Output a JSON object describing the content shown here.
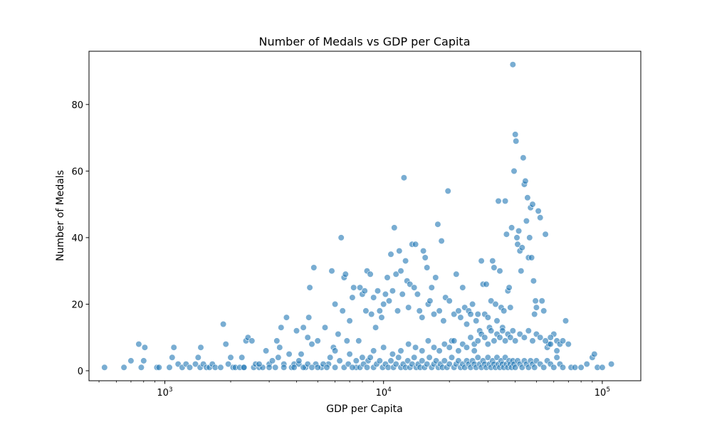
{
  "chart_data": {
    "type": "scatter",
    "title": "Number of Medals vs GDP per Capita",
    "xlabel": "GDP per Capita",
    "ylabel": "Number of Medals",
    "x_scale": "log",
    "xlim": [
      450,
      150000
    ],
    "ylim": [
      -3,
      96
    ],
    "x_ticks": [
      {
        "base": "10",
        "exp": "3"
      },
      {
        "base": "10",
        "exp": "4"
      },
      {
        "base": "10",
        "exp": "5"
      }
    ],
    "y_ticks": [
      "0",
      "20",
      "40",
      "60",
      "80"
    ],
    "grid": false,
    "legend": "none",
    "marker_color": "#1f77b4",
    "marker_alpha": 0.6,
    "points": [
      [
        530,
        1
      ],
      [
        650,
        1
      ],
      [
        700,
        3
      ],
      [
        760,
        8
      ],
      [
        780,
        1
      ],
      [
        800,
        3
      ],
      [
        810,
        7
      ],
      [
        920,
        1
      ],
      [
        940,
        1
      ],
      [
        1050,
        1
      ],
      [
        1080,
        4
      ],
      [
        1100,
        7
      ],
      [
        1150,
        2
      ],
      [
        1200,
        1
      ],
      [
        1250,
        2
      ],
      [
        1300,
        1
      ],
      [
        1380,
        2
      ],
      [
        1420,
        4
      ],
      [
        1450,
        1
      ],
      [
        1460,
        7
      ],
      [
        1500,
        2
      ],
      [
        1550,
        1
      ],
      [
        1600,
        1
      ],
      [
        1650,
        2
      ],
      [
        1700,
        1
      ],
      [
        1800,
        1
      ],
      [
        1850,
        14
      ],
      [
        1900,
        8
      ],
      [
        1950,
        2
      ],
      [
        2000,
        4
      ],
      [
        2050,
        1
      ],
      [
        2100,
        1
      ],
      [
        2200,
        1
      ],
      [
        2250,
        4
      ],
      [
        2300,
        1
      ],
      [
        2350,
        9
      ],
      [
        2400,
        10
      ],
      [
        2500,
        9
      ],
      [
        2550,
        1
      ],
      [
        2600,
        2
      ],
      [
        2700,
        1
      ],
      [
        2800,
        1
      ],
      [
        2900,
        6
      ],
      [
        3000,
        2
      ],
      [
        3100,
        3
      ],
      [
        3200,
        1
      ],
      [
        3250,
        9
      ],
      [
        3300,
        4
      ],
      [
        3350,
        7
      ],
      [
        3400,
        13
      ],
      [
        3500,
        2
      ],
      [
        3600,
        16
      ],
      [
        3700,
        5
      ],
      [
        3800,
        1
      ],
      [
        3900,
        2
      ],
      [
        4000,
        12
      ],
      [
        4100,
        2
      ],
      [
        4200,
        5
      ],
      [
        4300,
        13
      ],
      [
        4400,
        1
      ],
      [
        4500,
        10
      ],
      [
        4550,
        16
      ],
      [
        4600,
        25
      ],
      [
        4700,
        8
      ],
      [
        4800,
        31
      ],
      [
        4900,
        2
      ],
      [
        5000,
        9
      ],
      [
        5200,
        1
      ],
      [
        5400,
        13
      ],
      [
        5600,
        2
      ],
      [
        5800,
        30
      ],
      [
        5900,
        7
      ],
      [
        6000,
        20
      ],
      [
        6200,
        11
      ],
      [
        6400,
        40
      ],
      [
        6500,
        18
      ],
      [
        6600,
        28
      ],
      [
        6700,
        29
      ],
      [
        6800,
        9
      ],
      [
        7000,
        15
      ],
      [
        7200,
        22
      ],
      [
        7300,
        25
      ],
      [
        7500,
        1
      ],
      [
        7700,
        9
      ],
      [
        7800,
        25
      ],
      [
        8000,
        23
      ],
      [
        8200,
        24
      ],
      [
        8300,
        18
      ],
      [
        8400,
        30
      ],
      [
        8500,
        3
      ],
      [
        8700,
        29
      ],
      [
        8800,
        17
      ],
      [
        9000,
        22
      ],
      [
        9200,
        13
      ],
      [
        9400,
        24
      ],
      [
        9600,
        18
      ],
      [
        9800,
        16
      ],
      [
        10000,
        20
      ],
      [
        10200,
        23
      ],
      [
        10400,
        28
      ],
      [
        10600,
        21
      ],
      [
        10800,
        35
      ],
      [
        11000,
        24
      ],
      [
        11200,
        43
      ],
      [
        11400,
        29
      ],
      [
        11600,
        18
      ],
      [
        11800,
        36
      ],
      [
        12000,
        30
      ],
      [
        12200,
        23
      ],
      [
        12400,
        58
      ],
      [
        12600,
        33
      ],
      [
        12800,
        27
      ],
      [
        13000,
        19
      ],
      [
        13200,
        26
      ],
      [
        13500,
        38
      ],
      [
        13800,
        25
      ],
      [
        14000,
        38
      ],
      [
        14300,
        23
      ],
      [
        14600,
        18
      ],
      [
        15000,
        16
      ],
      [
        15200,
        36
      ],
      [
        15500,
        34
      ],
      [
        15800,
        31
      ],
      [
        16000,
        20
      ],
      [
        16300,
        21
      ],
      [
        16600,
        25
      ],
      [
        17000,
        17
      ],
      [
        17300,
        28
      ],
      [
        17700,
        44
      ],
      [
        18000,
        18
      ],
      [
        18400,
        39
      ],
      [
        18800,
        15
      ],
      [
        19200,
        22
      ],
      [
        19700,
        54
      ],
      [
        20000,
        21
      ],
      [
        20500,
        9
      ],
      [
        21000,
        17
      ],
      [
        21500,
        29
      ],
      [
        22000,
        18
      ],
      [
        22500,
        16
      ],
      [
        23000,
        25
      ],
      [
        23500,
        19
      ],
      [
        24000,
        14
      ],
      [
        24500,
        18
      ],
      [
        25000,
        17
      ],
      [
        25500,
        20
      ],
      [
        26000,
        6
      ],
      [
        26500,
        15
      ],
      [
        27000,
        17
      ],
      [
        27500,
        12
      ],
      [
        28000,
        33
      ],
      [
        28500,
        26
      ],
      [
        29000,
        17
      ],
      [
        29500,
        26
      ],
      [
        30000,
        16
      ],
      [
        30500,
        13
      ],
      [
        31000,
        21
      ],
      [
        31500,
        33
      ],
      [
        32000,
        31
      ],
      [
        32500,
        20
      ],
      [
        33000,
        15
      ],
      [
        33500,
        51
      ],
      [
        34000,
        30
      ],
      [
        34500,
        19
      ],
      [
        35000,
        13
      ],
      [
        35500,
        18
      ],
      [
        36000,
        51
      ],
      [
        36500,
        41
      ],
      [
        37000,
        24
      ],
      [
        37500,
        25
      ],
      [
        38000,
        19
      ],
      [
        38500,
        43
      ],
      [
        39000,
        92
      ],
      [
        39500,
        60
      ],
      [
        40000,
        71
      ],
      [
        40300,
        69
      ],
      [
        40700,
        40
      ],
      [
        41000,
        38
      ],
      [
        41500,
        42
      ],
      [
        42000,
        36
      ],
      [
        42500,
        30
      ],
      [
        43000,
        37
      ],
      [
        43500,
        64
      ],
      [
        44000,
        56
      ],
      [
        44500,
        57
      ],
      [
        45000,
        45
      ],
      [
        45500,
        52
      ],
      [
        46000,
        34
      ],
      [
        46500,
        40
      ],
      [
        47000,
        49
      ],
      [
        47500,
        34
      ],
      [
        48000,
        50
      ],
      [
        48500,
        27
      ],
      [
        49000,
        17
      ],
      [
        49500,
        21
      ],
      [
        50000,
        19
      ],
      [
        51000,
        48
      ],
      [
        52000,
        46
      ],
      [
        53000,
        21
      ],
      [
        54000,
        18
      ],
      [
        55000,
        41
      ],
      [
        56000,
        7
      ],
      [
        57000,
        8
      ],
      [
        58000,
        8
      ],
      [
        60000,
        11
      ],
      [
        62000,
        9
      ],
      [
        64000,
        8
      ],
      [
        66000,
        9
      ],
      [
        68000,
        15
      ],
      [
        70000,
        8
      ],
      [
        72000,
        1
      ],
      [
        75000,
        1
      ],
      [
        80000,
        1
      ],
      [
        85000,
        2
      ],
      [
        90000,
        4
      ],
      [
        92000,
        5
      ],
      [
        95000,
        1
      ],
      [
        100000,
        1
      ],
      [
        110000,
        2
      ],
      [
        2300,
        1
      ],
      [
        2700,
        2
      ],
      [
        3000,
        1
      ],
      [
        3500,
        1
      ],
      [
        3900,
        1
      ],
      [
        4100,
        3
      ],
      [
        4300,
        1
      ],
      [
        4500,
        2
      ],
      [
        4700,
        1
      ],
      [
        5000,
        1
      ],
      [
        5300,
        2
      ],
      [
        5500,
        1
      ],
      [
        5700,
        4
      ],
      [
        6000,
        1
      ],
      [
        6300,
        3
      ],
      [
        6600,
        1
      ],
      [
        6900,
        2
      ],
      [
        7200,
        1
      ],
      [
        7500,
        3
      ],
      [
        7800,
        1
      ],
      [
        8100,
        2
      ],
      [
        8400,
        1
      ],
      [
        8700,
        4
      ],
      [
        9000,
        1
      ],
      [
        9300,
        2
      ],
      [
        9600,
        3
      ],
      [
        9900,
        1
      ],
      [
        10200,
        2
      ],
      [
        10500,
        1
      ],
      [
        10800,
        3
      ],
      [
        11100,
        1
      ],
      [
        11400,
        2
      ],
      [
        11700,
        4
      ],
      [
        12000,
        1
      ],
      [
        12300,
        2
      ],
      [
        12600,
        1
      ],
      [
        12900,
        3
      ],
      [
        13200,
        1
      ],
      [
        13500,
        2
      ],
      [
        13800,
        4
      ],
      [
        14100,
        1
      ],
      [
        14400,
        2
      ],
      [
        14700,
        1
      ],
      [
        15000,
        3
      ],
      [
        15400,
        1
      ],
      [
        15800,
        2
      ],
      [
        16200,
        4
      ],
      [
        16600,
        1
      ],
      [
        17000,
        2
      ],
      [
        17400,
        3
      ],
      [
        17800,
        1
      ],
      [
        18200,
        2
      ],
      [
        18600,
        1
      ],
      [
        19000,
        3
      ],
      [
        19500,
        1
      ],
      [
        20000,
        2
      ],
      [
        20500,
        4
      ],
      [
        21000,
        1
      ],
      [
        21500,
        2
      ],
      [
        22000,
        3
      ],
      [
        22500,
        1
      ],
      [
        23000,
        2
      ],
      [
        23500,
        1
      ],
      [
        24000,
        3
      ],
      [
        24500,
        2
      ],
      [
        25000,
        1
      ],
      [
        25500,
        3
      ],
      [
        26000,
        2
      ],
      [
        26500,
        1
      ],
      [
        27000,
        4
      ],
      [
        27500,
        2
      ],
      [
        28000,
        1
      ],
      [
        28500,
        3
      ],
      [
        29000,
        2
      ],
      [
        29500,
        1
      ],
      [
        30000,
        4
      ],
      [
        30500,
        2
      ],
      [
        31000,
        1
      ],
      [
        31500,
        3
      ],
      [
        32000,
        2
      ],
      [
        32500,
        1
      ],
      [
        33000,
        4
      ],
      [
        33500,
        2
      ],
      [
        34000,
        1
      ],
      [
        34500,
        3
      ],
      [
        35000,
        2
      ],
      [
        35500,
        1
      ],
      [
        36000,
        4
      ],
      [
        36500,
        2
      ],
      [
        37000,
        1
      ],
      [
        37500,
        3
      ],
      [
        38000,
        2
      ],
      [
        38500,
        1
      ],
      [
        39000,
        3
      ],
      [
        39500,
        2
      ],
      [
        40000,
        1
      ],
      [
        41000,
        3
      ],
      [
        42000,
        2
      ],
      [
        43000,
        1
      ],
      [
        44000,
        3
      ],
      [
        45000,
        2
      ],
      [
        46000,
        1
      ],
      [
        47000,
        3
      ],
      [
        48000,
        2
      ],
      [
        49000,
        1
      ],
      [
        50000,
        3
      ],
      [
        52000,
        2
      ],
      [
        54000,
        1
      ],
      [
        56000,
        3
      ],
      [
        58000,
        2
      ],
      [
        60000,
        1
      ],
      [
        62000,
        4
      ],
      [
        64000,
        2
      ],
      [
        66000,
        1
      ],
      [
        6000,
        6
      ],
      [
        7000,
        5
      ],
      [
        8000,
        4
      ],
      [
        9000,
        6
      ],
      [
        10000,
        7
      ],
      [
        11000,
        5
      ],
      [
        12000,
        6
      ],
      [
        13000,
        8
      ],
      [
        14000,
        7
      ],
      [
        15000,
        6
      ],
      [
        16000,
        9
      ],
      [
        17000,
        7
      ],
      [
        18000,
        6
      ],
      [
        19000,
        8
      ],
      [
        20000,
        7
      ],
      [
        21000,
        9
      ],
      [
        22000,
        6
      ],
      [
        23000,
        8
      ],
      [
        24000,
        7
      ],
      [
        25000,
        10
      ],
      [
        26000,
        8
      ],
      [
        27000,
        9
      ],
      [
        28000,
        11
      ],
      [
        29000,
        10
      ],
      [
        30000,
        8
      ],
      [
        31000,
        12
      ],
      [
        32000,
        9
      ],
      [
        33000,
        11
      ],
      [
        34000,
        10
      ],
      [
        35000,
        12
      ],
      [
        36000,
        9
      ],
      [
        37000,
        11
      ],
      [
        38000,
        10
      ],
      [
        39000,
        12
      ],
      [
        40000,
        9
      ],
      [
        42000,
        11
      ],
      [
        44000,
        10
      ],
      [
        46000,
        12
      ],
      [
        48000,
        9
      ],
      [
        50000,
        11
      ],
      [
        52000,
        10
      ],
      [
        55000,
        9
      ],
      [
        58000,
        10
      ],
      [
        62000,
        6
      ]
    ]
  }
}
